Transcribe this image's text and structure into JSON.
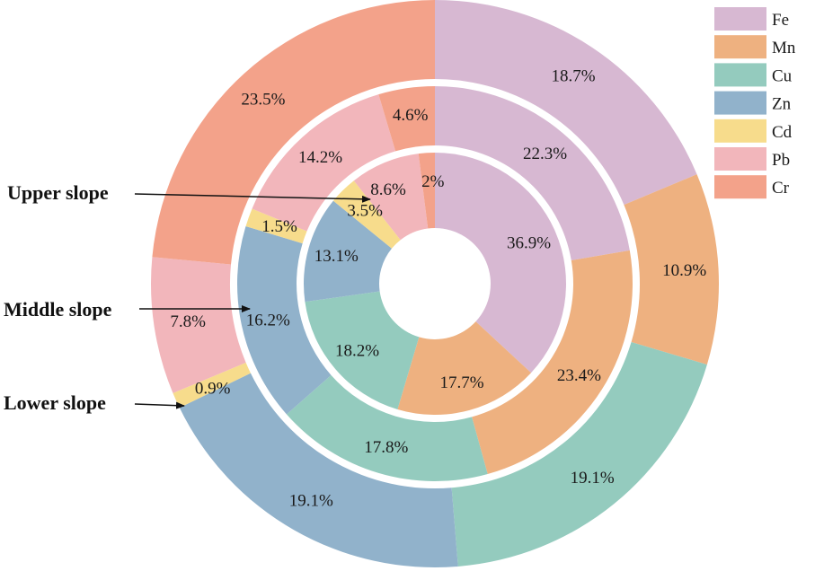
{
  "chart_data": {
    "type": "pie",
    "categories": [
      "Fe",
      "Mn",
      "Cu",
      "Zn",
      "Cd",
      "Pb",
      "Cr"
    ],
    "colors": [
      "#d7b8d2",
      "#eeb180",
      "#94cbbe",
      "#91b2cb",
      "#f7dc8c",
      "#f2b6bb",
      "#f3a28a"
    ],
    "series": [
      {
        "name": "Upper slope",
        "values": [
          36.9,
          17.7,
          18.2,
          13.1,
          3.5,
          8.6,
          2
        ]
      },
      {
        "name": "Middle slope",
        "values": [
          22.3,
          23.4,
          17.8,
          16.2,
          1.5,
          14.2,
          4.6
        ]
      },
      {
        "name": "Lower slope",
        "values": [
          18.7,
          10.9,
          19.1,
          19.1,
          0.9,
          7.8,
          23.5
        ]
      }
    ],
    "labels": [
      [
        "36.9%",
        "17.7%",
        "18.2%",
        "13.1%",
        "3.5%",
        "8.6%",
        "2%"
      ],
      [
        "22.3%",
        "23.4%",
        "17.8%",
        "16.2%",
        "1.5%",
        "14.2%",
        "4.6%"
      ],
      [
        "18.7%",
        "10.9%",
        "19.1%",
        "19.1%",
        "0.9%",
        "7.8%",
        "23.5%"
      ]
    ],
    "legend_position": "top-right"
  }
}
